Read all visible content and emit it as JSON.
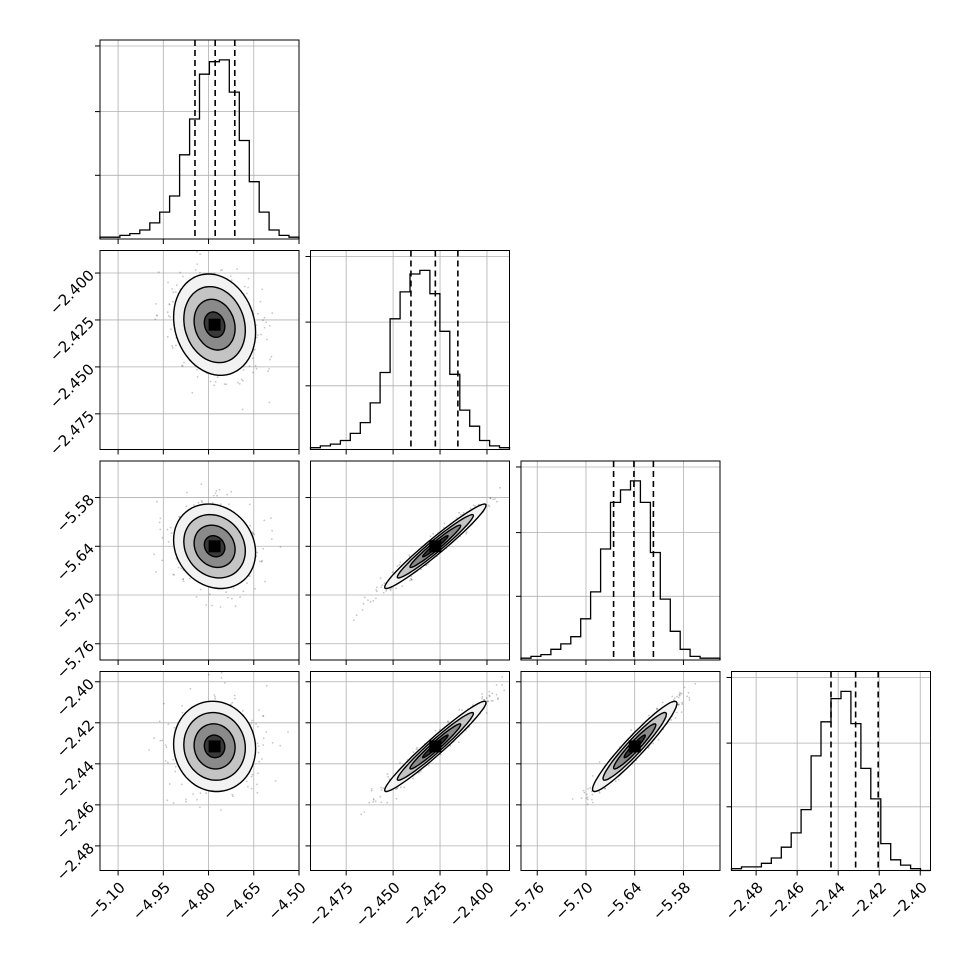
{
  "chart_data": {
    "type": "corner",
    "grid": true,
    "parameters": [
      {
        "mean": -4.78,
        "sd": 0.068,
        "range": [
          -5.16,
          -4.5
        ],
        "ticks": [
          "-5.10",
          "-4.95",
          "-4.80",
          "-4.65",
          "-4.50"
        ],
        "tick_values": [
          -5.1,
          -4.95,
          -4.8,
          -4.65,
          -4.5
        ],
        "quantiles": [
          -4.845,
          -4.778,
          -4.713
        ],
        "histogram": [
          0.01,
          0.01,
          0.02,
          0.03,
          0.05,
          0.09,
          0.15,
          0.24,
          0.47,
          0.67,
          0.92,
          0.99,
          1.0,
          0.82,
          0.55,
          0.32,
          0.15,
          0.05,
          0.02,
          0.01
        ]
      },
      {
        "mean": -2.4275,
        "sd": 0.0135,
        "range": [
          -2.494,
          -2.388
        ],
        "ticks": [
          "-2.475",
          "-2.450",
          "-2.425",
          "-2.400"
        ],
        "tick_values": [
          -2.475,
          -2.45,
          -2.425,
          -2.4
        ],
        "quantiles": [
          -2.4405,
          -2.4275,
          -2.4155
        ],
        "histogram": [
          0.01,
          0.02,
          0.03,
          0.05,
          0.09,
          0.15,
          0.26,
          0.43,
          0.73,
          0.88,
          0.98,
          1.0,
          0.87,
          0.66,
          0.42,
          0.22,
          0.13,
          0.05,
          0.02,
          0.01
        ]
      },
      {
        "mean": -5.64,
        "sd": 0.026,
        "range": [
          -5.78,
          -5.535
        ],
        "ticks": [
          "-5.76",
          "-5.70",
          "-5.64",
          "-5.58"
        ],
        "tick_values": [
          -5.76,
          -5.7,
          -5.64,
          -5.58
        ],
        "quantiles": [
          -5.666,
          -5.641,
          -5.617
        ],
        "histogram": [
          0.01,
          0.02,
          0.03,
          0.06,
          0.09,
          0.13,
          0.23,
          0.38,
          0.62,
          0.88,
          0.95,
          1.0,
          0.88,
          0.6,
          0.34,
          0.16,
          0.06,
          0.02,
          0.01,
          0.01
        ]
      },
      {
        "mean": -2.4315,
        "sd": 0.011,
        "range": [
          -2.492,
          -2.395
        ],
        "ticks": [
          "-2.48",
          "-2.46",
          "-2.44",
          "-2.42",
          "-2.40"
        ],
        "tick_values": [
          -2.48,
          -2.46,
          -2.44,
          -2.42,
          -2.4
        ],
        "quantiles": [
          -2.4435,
          -2.4315,
          -2.4205
        ],
        "histogram": [
          0.01,
          0.02,
          0.02,
          0.04,
          0.07,
          0.13,
          0.21,
          0.34,
          0.64,
          0.83,
          0.96,
          1.0,
          0.82,
          0.57,
          0.4,
          0.15,
          0.06,
          0.03,
          0.01,
          0.0
        ]
      }
    ],
    "correlations": [
      [
        1.0,
        -0.15,
        -0.15,
        -0.05
      ],
      [
        -0.15,
        1.0,
        0.97,
        0.97
      ],
      [
        -0.15,
        0.97,
        1.0,
        0.95
      ],
      [
        -0.05,
        0.97,
        0.95,
        1.0
      ]
    ],
    "sigma_levels": [
      0.5,
      1.0,
      1.5,
      2.0
    ]
  }
}
